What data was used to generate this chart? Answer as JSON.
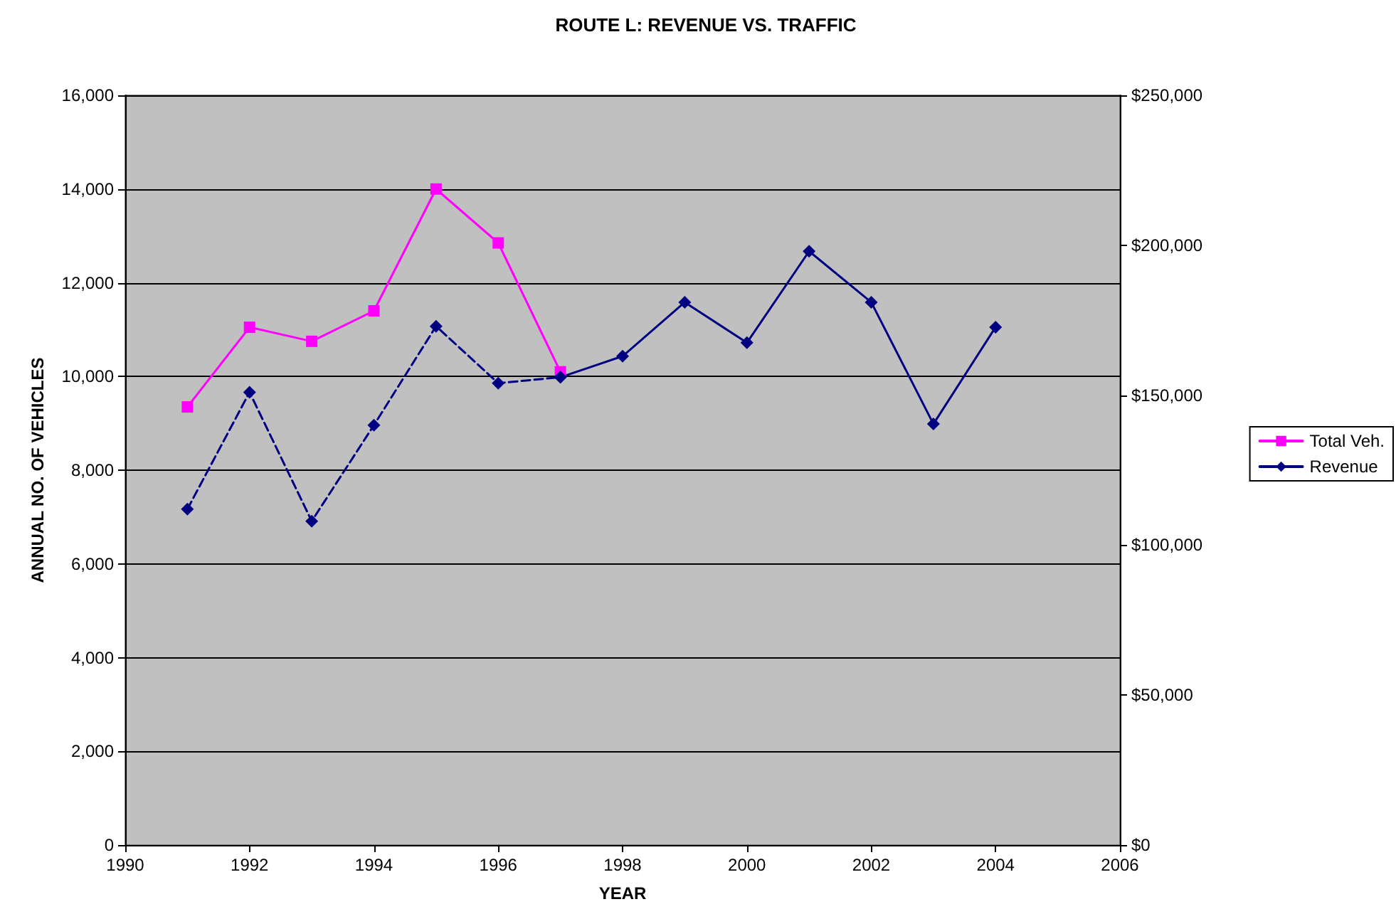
{
  "chart_data": {
    "type": "line",
    "title": "ROUTE L: REVENUE VS. TRAFFIC",
    "xlabel": "YEAR",
    "ylabel": "ANNUAL NO. OF VEHICLES",
    "x": [
      1991,
      1992,
      1993,
      1994,
      1995,
      1996,
      1997,
      1998,
      1999,
      2000,
      2001,
      2002,
      2003,
      2004
    ],
    "series": [
      {
        "name": "Total Veh.",
        "color": "#ff00ff",
        "marker": "square",
        "line_style": "solid",
        "values": [
          9350,
          11050,
          10750,
          11400,
          14000,
          12850,
          10100,
          null,
          null,
          null,
          null,
          null,
          null,
          null
        ]
      },
      {
        "color": "#000080",
        "marker": "diamond",
        "line_style": "dashed",
        "axis": "y2",
        "values": [
          112000,
          151000,
          108000,
          140000,
          173000,
          154000,
          156000,
          null,
          null,
          null,
          null,
          null,
          null,
          null
        ]
      },
      {
        "name": "Revenue",
        "color": "#000080",
        "marker": "diamond",
        "line_style": "solid",
        "axis": "y2",
        "values": [
          null,
          null,
          null,
          null,
          null,
          null,
          156000,
          163000,
          181000,
          167500,
          198000,
          181000,
          140400,
          172700
        ]
      }
    ],
    "xlim": [
      1990,
      2006
    ],
    "xticks": [
      1990,
      1992,
      1994,
      1996,
      1998,
      2000,
      2002,
      2004,
      2006
    ],
    "ylim": [
      0,
      16000
    ],
    "yticks": [
      0,
      {
        "value": 2000,
        "label": "2,000"
      },
      {
        "value": 4000,
        "label": "4,000"
      },
      {
        "value": 6000,
        "label": "6,000"
      },
      {
        "value": 8000,
        "label": "8,000"
      },
      {
        "value": 10000,
        "label": "10,000"
      },
      {
        "value": 12000,
        "label": "12,000"
      },
      {
        "value": 14000,
        "label": "14,000"
      },
      {
        "value": 16000,
        "label": "16,000"
      }
    ],
    "y2lim": [
      0,
      250000
    ],
    "y2ticks": [
      {
        "value": 0,
        "label": "$0"
      },
      {
        "value": 50000,
        "label": "$50,000"
      },
      {
        "value": 100000,
        "label": "$100,000"
      },
      {
        "value": 150000,
        "label": "$150,000"
      },
      {
        "value": 200000,
        "label": "$200,000"
      },
      {
        "value": 250000,
        "label": "$250,000"
      }
    ],
    "grid": "y",
    "legend": "right"
  }
}
